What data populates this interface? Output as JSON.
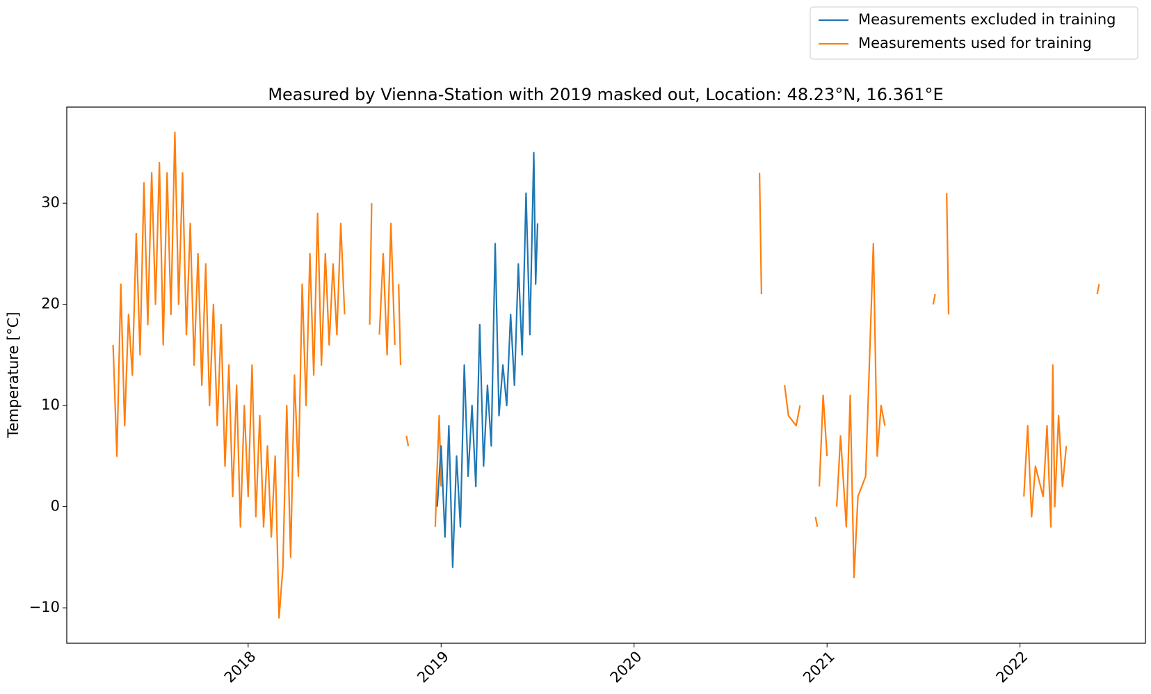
{
  "chart_data": {
    "type": "line",
    "title": "Measured by Vienna-Station with 2019 masked out, Location: 48.23°N, 16.361°E",
    "y_label": "Temperature [°C]",
    "xlim": [
      2017.06,
      2022.65
    ],
    "xticks": [
      2018,
      2019,
      2020,
      2021,
      2022
    ],
    "ylim": [
      -13.5,
      39.5
    ],
    "yticks": [
      {
        "value": -10,
        "label": "−10"
      },
      0,
      10,
      20,
      30
    ],
    "legend": "upper right",
    "grid": false,
    "series": [
      {
        "name": "Measurements excluded in training",
        "color": "#1f77b4",
        "x": [
          2018.98,
          2019.0,
          2019.02,
          2019.04,
          2019.06,
          2019.08,
          2019.1,
          2019.12,
          2019.14,
          2019.16,
          2019.18,
          2019.2,
          2019.22,
          2019.24,
          2019.26,
          2019.28,
          2019.3,
          2019.32,
          2019.34,
          2019.36,
          2019.38,
          2019.4,
          2019.42,
          2019.44,
          2019.46,
          2019.48,
          2019.49,
          2019.5
        ],
        "values": [
          0,
          6,
          -3,
          8,
          -6,
          5,
          -2,
          14,
          3,
          10,
          2,
          18,
          4,
          12,
          6,
          26,
          9,
          14,
          10,
          19,
          12,
          24,
          15,
          31,
          17,
          35,
          22,
          28
        ]
      },
      {
        "name": "Measurements used for training",
        "color": "#ff7f0e",
        "x": [
          2017.3,
          2017.32,
          2017.34,
          2017.36,
          2017.38,
          2017.4,
          2017.42,
          2017.44,
          2017.46,
          2017.48,
          2017.5,
          2017.52,
          2017.54,
          2017.56,
          2017.58,
          2017.6,
          2017.62,
          2017.64,
          2017.66,
          2017.68,
          2017.7,
          2017.72,
          2017.74,
          2017.76,
          2017.78,
          2017.8,
          2017.82,
          2017.84,
          2017.86,
          2017.88,
          2017.9,
          2017.92,
          2017.94,
          2017.96,
          2017.98,
          2018.0,
          2018.02,
          2018.04,
          2018.06,
          2018.08,
          2018.1,
          2018.12,
          2018.14,
          2018.16,
          2018.18,
          2018.2,
          2018.22,
          2018.24,
          2018.26,
          2018.28,
          2018.3,
          2018.32,
          2018.34,
          2018.36,
          2018.38,
          2018.4,
          2018.42,
          2018.44,
          2018.46,
          2018.48,
          2018.5,
          2018.51,
          2018.63,
          2018.64,
          2018.65,
          2018.68,
          2018.7,
          2018.72,
          2018.74,
          2018.76,
          2018.77,
          2018.78,
          2018.79,
          2018.8,
          2018.82,
          2018.83,
          2018.84,
          2018.97,
          2018.98,
          2018.99,
          2019.0,
          2019.01,
          2020.65,
          2020.66,
          2020.7,
          2020.78,
          2020.8,
          2020.84,
          2020.86,
          2020.9,
          2020.94,
          2020.95,
          2020.955,
          2020.96,
          2020.98,
          2021.0,
          2021.02,
          2021.05,
          2021.07,
          2021.1,
          2021.12,
          2021.14,
          2021.16,
          2021.2,
          2021.24,
          2021.26,
          2021.28,
          2021.3,
          2021.4,
          2021.55,
          2021.56,
          2021.58,
          2021.62,
          2021.63,
          2021.7,
          2022.02,
          2022.04,
          2022.06,
          2022.08,
          2022.12,
          2022.14,
          2022.16,
          2022.17,
          2022.18,
          2022.2,
          2022.22,
          2022.24,
          2022.3,
          2022.4,
          2022.41
        ],
        "values": [
          16,
          5,
          22,
          8,
          19,
          13,
          27,
          15,
          32,
          18,
          33,
          20,
          34,
          16,
          33,
          19,
          37,
          20,
          33,
          17,
          28,
          14,
          25,
          12,
          24,
          10,
          20,
          8,
          18,
          4,
          14,
          1,
          12,
          -2,
          10,
          1,
          14,
          -1,
          9,
          -2,
          6,
          -3,
          5,
          -11,
          -6,
          10,
          -5,
          13,
          3,
          22,
          10,
          25,
          13,
          29,
          14,
          25,
          16,
          24,
          17,
          28,
          19,
          null,
          18,
          30,
          null,
          17,
          25,
          15,
          28,
          16,
          null,
          22,
          14,
          null,
          7,
          6,
          null,
          -2,
          4,
          9,
          2,
          null,
          33,
          21,
          null,
          12,
          9,
          8,
          10,
          null,
          -1,
          -2,
          null,
          2,
          11,
          5,
          null,
          0,
          7,
          -2,
          11,
          -7,
          1,
          3,
          26,
          5,
          10,
          8,
          null,
          20,
          21,
          null,
          31,
          19,
          null,
          1,
          8,
          -1,
          4,
          1,
          8,
          -2,
          14,
          0,
          9,
          2,
          6,
          null,
          21,
          22
        ]
      }
    ]
  }
}
